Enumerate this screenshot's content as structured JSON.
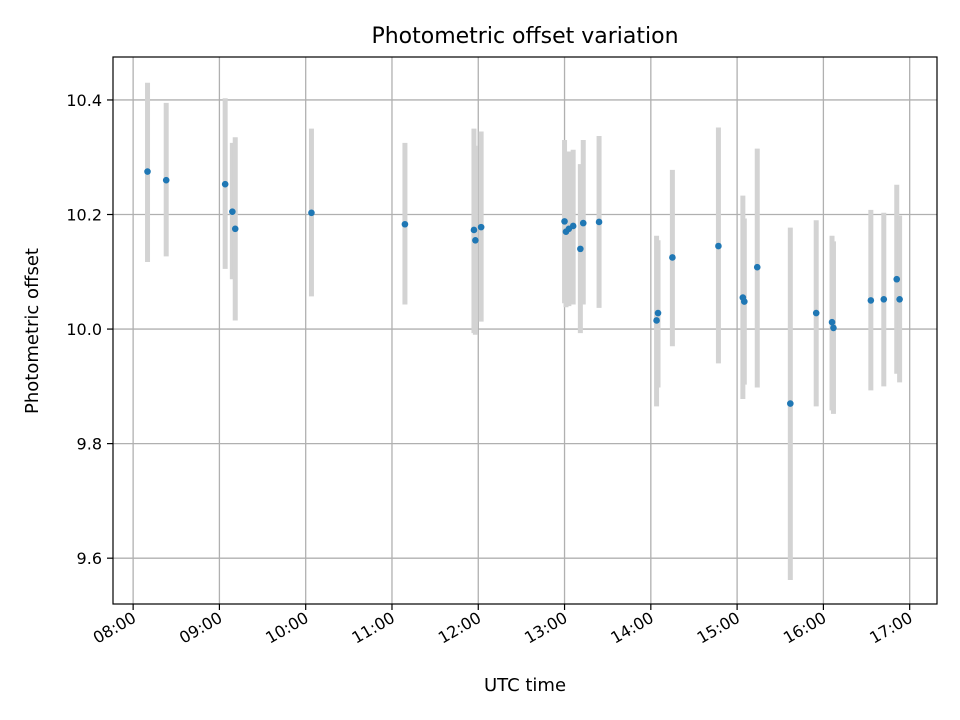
{
  "chart_data": {
    "type": "scatter",
    "title": "Photometric offset variation",
    "xlabel": "UTC time",
    "ylabel": "Photometric offset",
    "x_ticks": [
      "08:00",
      "09:00",
      "10:00",
      "11:00",
      "12:00",
      "13:00",
      "14:00",
      "15:00",
      "16:00",
      "17:00"
    ],
    "y_ticks": [
      "9.6",
      "9.8",
      "10.0",
      "10.2",
      "10.4"
    ],
    "xlim": [
      "07:46",
      "17:19"
    ],
    "ylim": [
      9.52,
      10.475
    ],
    "grid": true,
    "colors": {
      "point": "#1f77b4",
      "errorbar": "#d3d3d3"
    },
    "points": [
      {
        "time": "08:10",
        "y": 10.275,
        "ylow": 10.117,
        "yhigh": 10.43
      },
      {
        "time": "08:23",
        "y": 10.26,
        "ylow": 10.127,
        "yhigh": 10.395
      },
      {
        "time": "09:04",
        "y": 10.253,
        "ylow": 10.105,
        "yhigh": 10.403
      },
      {
        "time": "09:09",
        "y": 10.205,
        "ylow": 10.087,
        "yhigh": 10.325
      },
      {
        "time": "09:11",
        "y": 10.175,
        "ylow": 10.015,
        "yhigh": 10.335
      },
      {
        "time": "10:04",
        "y": 10.203,
        "ylow": 10.057,
        "yhigh": 10.35
      },
      {
        "time": "11:09",
        "y": 10.183,
        "ylow": 10.043,
        "yhigh": 10.325
      },
      {
        "time": "11:57",
        "y": 10.173,
        "ylow": 9.993,
        "yhigh": 10.35
      },
      {
        "time": "11:58",
        "y": 10.155,
        "ylow": 9.99,
        "yhigh": 10.32
      },
      {
        "time": "12:02",
        "y": 10.178,
        "ylow": 10.013,
        "yhigh": 10.345
      },
      {
        "time": "13:00",
        "y": 10.188,
        "ylow": 10.045,
        "yhigh": 10.33
      },
      {
        "time": "13:01",
        "y": 10.17,
        "ylow": 10.038,
        "yhigh": 10.308
      },
      {
        "time": "13:03",
        "y": 10.175,
        "ylow": 10.04,
        "yhigh": 10.31
      },
      {
        "time": "13:06",
        "y": 10.18,
        "ylow": 10.043,
        "yhigh": 10.313
      },
      {
        "time": "13:11",
        "y": 10.14,
        "ylow": 9.993,
        "yhigh": 10.288
      },
      {
        "time": "13:13",
        "y": 10.185,
        "ylow": 10.043,
        "yhigh": 10.33
      },
      {
        "time": "13:24",
        "y": 10.187,
        "ylow": 10.037,
        "yhigh": 10.337
      },
      {
        "time": "14:04",
        "y": 10.015,
        "ylow": 9.865,
        "yhigh": 10.163
      },
      {
        "time": "14:05",
        "y": 10.028,
        "ylow": 9.898,
        "yhigh": 10.155
      },
      {
        "time": "14:15",
        "y": 10.125,
        "ylow": 9.97,
        "yhigh": 10.278
      },
      {
        "time": "14:47",
        "y": 10.145,
        "ylow": 9.94,
        "yhigh": 10.352
      },
      {
        "time": "15:04",
        "y": 10.055,
        "ylow": 9.878,
        "yhigh": 10.233
      },
      {
        "time": "15:05",
        "y": 10.048,
        "ylow": 9.903,
        "yhigh": 10.193
      },
      {
        "time": "15:14",
        "y": 10.108,
        "ylow": 9.898,
        "yhigh": 10.315
      },
      {
        "time": "15:37",
        "y": 9.87,
        "ylow": 9.562,
        "yhigh": 10.177
      },
      {
        "time": "15:55",
        "y": 10.028,
        "ylow": 9.865,
        "yhigh": 10.19
      },
      {
        "time": "16:06",
        "y": 10.012,
        "ylow": 9.858,
        "yhigh": 10.163
      },
      {
        "time": "16:07",
        "y": 10.002,
        "ylow": 9.852,
        "yhigh": 10.153
      },
      {
        "time": "16:33",
        "y": 10.05,
        "ylow": 9.893,
        "yhigh": 10.208
      },
      {
        "time": "16:42",
        "y": 10.052,
        "ylow": 9.9,
        "yhigh": 10.203
      },
      {
        "time": "16:51",
        "y": 10.087,
        "ylow": 9.922,
        "yhigh": 10.252
      },
      {
        "time": "16:53",
        "y": 10.052,
        "ylow": 9.907,
        "yhigh": 10.198
      }
    ]
  }
}
